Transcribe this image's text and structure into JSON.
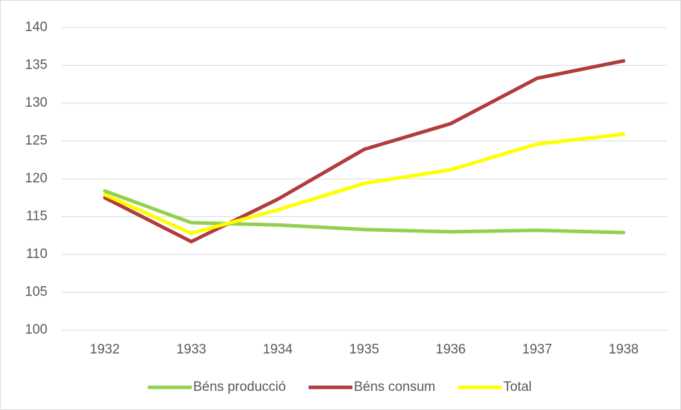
{
  "chart_data": {
    "type": "line",
    "categories": [
      "1932",
      "1933",
      "1934",
      "1935",
      "1936",
      "1937",
      "1938"
    ],
    "series": [
      {
        "name": "Béns producció",
        "color": "#92d050",
        "values": [
          118.4,
          114.2,
          113.9,
          113.3,
          113.0,
          113.2,
          112.9
        ]
      },
      {
        "name": "Béns consum",
        "color": "#b23b3b",
        "values": [
          117.5,
          111.7,
          117.3,
          123.9,
          127.3,
          133.3,
          135.6
        ]
      },
      {
        "name": "Total",
        "color": "#ffff00",
        "values": [
          117.9,
          112.8,
          115.9,
          119.4,
          121.2,
          124.6,
          125.9
        ]
      }
    ],
    "ylim": [
      100,
      140
    ],
    "yticks": [
      100,
      105,
      110,
      115,
      120,
      125,
      130,
      135,
      140
    ],
    "grid": true,
    "legend": "bottom"
  }
}
